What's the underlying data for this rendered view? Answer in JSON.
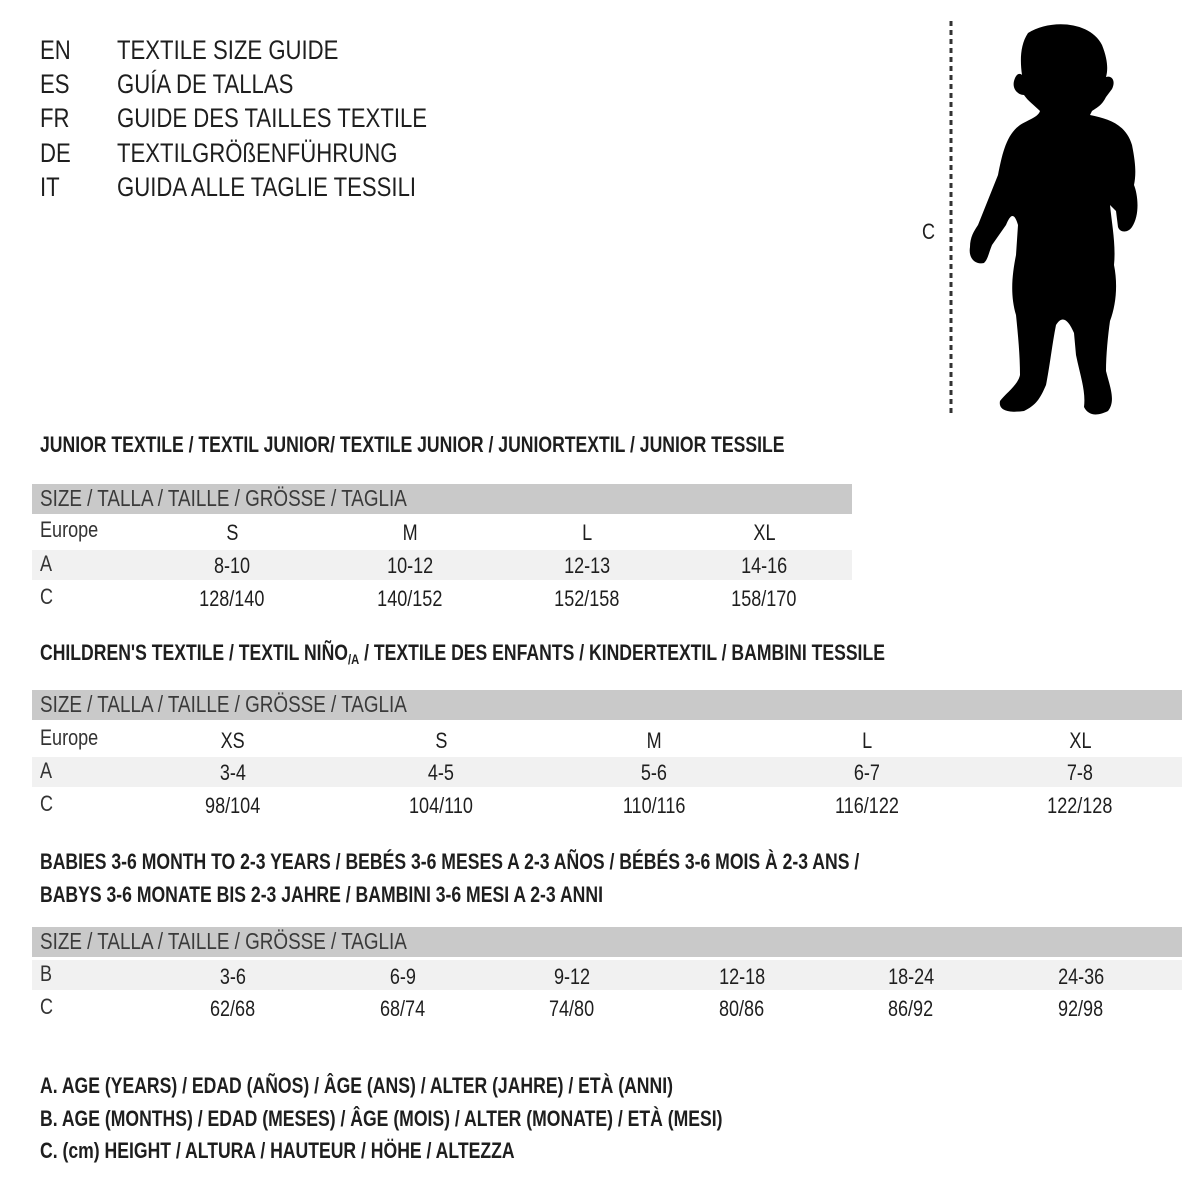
{
  "header": [
    {
      "code": "EN",
      "title": "TEXTILE SIZE GUIDE"
    },
    {
      "code": "ES",
      "title": "GUÍA DE TALLAS"
    },
    {
      "code": "FR",
      "title": "GUIDE DES TAILLES TEXTILE"
    },
    {
      "code": "DE",
      "title": "TEXTILGRÖßENFÜHRUNG"
    },
    {
      "code": "IT",
      "title": "GUIDA ALLE TAGLIE TESSILI"
    }
  ],
  "figure": {
    "measure_label": "C",
    "icon": "child-silhouette-icon"
  },
  "size_bar_label": "SIZE / TALLA / TAILLE / GRÖSSE / TAGLIA",
  "junior": {
    "title": "JUNIOR TEXTILE / TEXTIL JUNIOR/ TEXTILE JUNIOR / JUNIORTEXTIL / JUNIOR TESSILE",
    "rows": [
      {
        "label": "Europe",
        "values": [
          "S",
          "M",
          "L",
          "XL"
        ]
      },
      {
        "label": "A",
        "values": [
          "8-10",
          "10-12",
          "12-13",
          "14-16"
        ]
      },
      {
        "label": "C",
        "values": [
          "128/140",
          "140/152",
          "152/158",
          "158/170"
        ]
      }
    ]
  },
  "children": {
    "title_a": "CHILDREN'S TEXTILE / TEXTIL NIÑO",
    "title_sub": "/A",
    "title_b": " / TEXTILE DES ENFANTS / KINDERTEXTIL / BAMBINI TESSILE",
    "rows": [
      {
        "label": "Europe",
        "values": [
          "XS",
          "S",
          "M",
          "L",
          "XL"
        ]
      },
      {
        "label": "A",
        "values": [
          "3-4",
          "4-5",
          "5-6",
          "6-7",
          "7-8"
        ]
      },
      {
        "label": "C",
        "values": [
          "98/104",
          "104/110",
          "110/116",
          "116/122",
          "122/128"
        ]
      }
    ]
  },
  "babies": {
    "title_line1": "BABIES 3-6 MONTH TO 2-3 YEARS / BEBÉS 3-6 MESES A 2-3 AÑOS / BÉBÉS 3-6 MOIS À 2-3 ANS /",
    "title_line2": "BABYS 3-6 MONATE BIS 2-3 JAHRE / BAMBINI 3-6 MESI A 2-3 ANNI",
    "rows": [
      {
        "label": "B",
        "values": [
          "3-6",
          "6-9",
          "9-12",
          "12-18",
          "18-24",
          "24-36"
        ]
      },
      {
        "label": "C",
        "values": [
          "62/68",
          "68/74",
          "74/80",
          "80/86",
          "86/92",
          "92/98"
        ]
      }
    ]
  },
  "legend": [
    "A. AGE (YEARS) / EDAD (AÑOS) / ÂGE (ANS) / ALTER (JAHRE) / ETÀ (ANNI)",
    "B. AGE (MONTHS) / EDAD (MESES) / ÂGE (MOIS) / ALTER (MONATE) / ETÀ (MESI)",
    "C. (cm) HEIGHT / ALTURA / HAUTEUR / HÖHE / ALTEZZA"
  ],
  "colors": {
    "header_bar": "#c9c9c9",
    "alt_row": "#f1f1f1",
    "text": "#1e1e1e"
  }
}
